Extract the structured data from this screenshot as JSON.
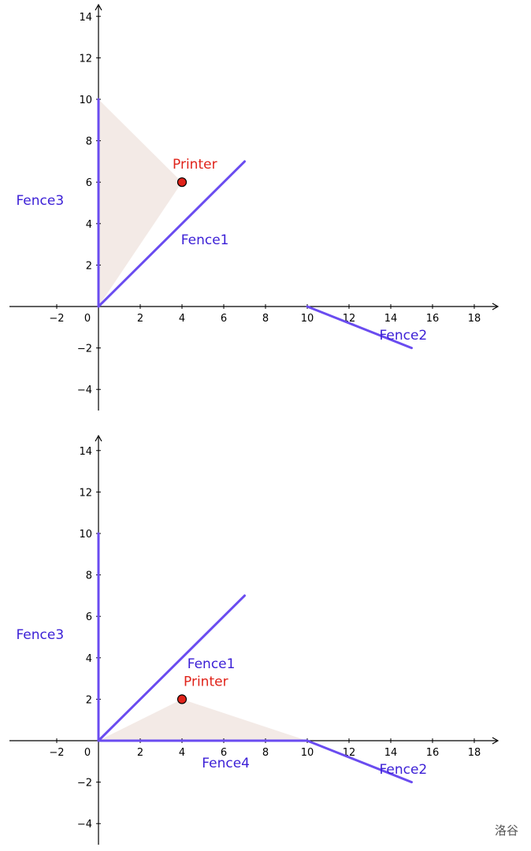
{
  "colors": {
    "fence": "#6a4cf0",
    "fence_label": "#3b1fd6",
    "printer": "#e0231a",
    "shade": "#efe3dd"
  },
  "watermark": "洛谷",
  "panels": [
    {
      "x_ticks": [
        -2,
        0,
        2,
        4,
        6,
        8,
        10,
        12,
        14,
        16,
        18
      ],
      "y_ticks": [
        -4,
        -2,
        2,
        4,
        6,
        8,
        10,
        12,
        14
      ],
      "xlim": [
        -4,
        19
      ],
      "ylim": [
        -5,
        14.5
      ],
      "fences": [
        {
          "name": "Fence1",
          "from": [
            0,
            0
          ],
          "to": [
            7,
            7
          ]
        },
        {
          "name": "Fence2",
          "from": [
            10,
            0
          ],
          "to": [
            15,
            -2
          ]
        },
        {
          "name": "Fence3",
          "from": [
            0,
            0
          ],
          "to": [
            0,
            10
          ]
        }
      ],
      "fence_labels": [
        {
          "text": "Fence1",
          "pos": [
            5.1,
            3.0
          ]
        },
        {
          "text": "Fence2",
          "pos": [
            14.6,
            -1.6
          ]
        },
        {
          "text": "Fence3",
          "pos": [
            -2.8,
            4.9
          ]
        }
      ],
      "printer": {
        "label": "Printer",
        "point": [
          4,
          6
        ]
      },
      "shaded_region": [
        [
          0,
          10
        ],
        [
          4,
          6
        ],
        [
          0,
          0
        ]
      ]
    },
    {
      "x_ticks": [
        -2,
        0,
        2,
        4,
        6,
        8,
        10,
        12,
        14,
        16,
        18
      ],
      "y_ticks": [
        -4,
        -2,
        2,
        4,
        6,
        8,
        10,
        12,
        14
      ],
      "xlim": [
        -4,
        19
      ],
      "ylim": [
        -5,
        14.5
      ],
      "fences": [
        {
          "name": "Fence1",
          "from": [
            0,
            0
          ],
          "to": [
            7,
            7
          ]
        },
        {
          "name": "Fence2",
          "from": [
            10,
            0
          ],
          "to": [
            15,
            -2
          ]
        },
        {
          "name": "Fence3",
          "from": [
            0,
            0
          ],
          "to": [
            0,
            10
          ]
        },
        {
          "name": "Fence4",
          "from": [
            0,
            0
          ],
          "to": [
            10,
            0
          ]
        }
      ],
      "fence_labels": [
        {
          "text": "Fence1",
          "pos": [
            5.4,
            3.5
          ]
        },
        {
          "text": "Fence2",
          "pos": [
            14.6,
            -1.6
          ]
        },
        {
          "text": "Fence3",
          "pos": [
            -2.8,
            4.9
          ]
        },
        {
          "text": "Fence4",
          "pos": [
            6.1,
            -1.3
          ]
        }
      ],
      "printer": {
        "label": "Printer",
        "point": [
          4,
          2
        ]
      },
      "shaded_region": [
        [
          0,
          0
        ],
        [
          4,
          2
        ],
        [
          10,
          0
        ]
      ]
    }
  ]
}
